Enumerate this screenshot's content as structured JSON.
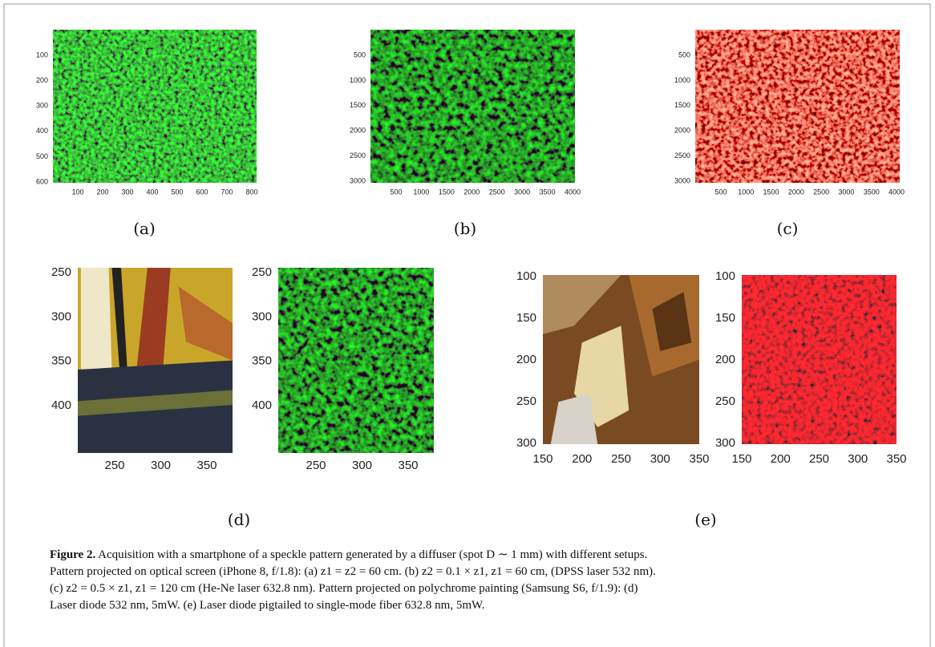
{
  "panels": [
    {
      "label": "(a)",
      "images": [
        {
          "xticks": [
            100,
            200,
            300,
            400,
            500,
            600,
            700,
            800
          ],
          "yticks": [
            100,
            200,
            300,
            400,
            500,
            600
          ]
        }
      ]
    },
    {
      "label": "(b)",
      "images": [
        {
          "xticks": [
            500,
            1000,
            1500,
            2000,
            2500,
            3000,
            3500,
            4000
          ],
          "yticks": [
            500,
            1000,
            1500,
            2000,
            2500,
            3000
          ]
        }
      ]
    },
    {
      "label": "(c)",
      "images": [
        {
          "xticks": [
            500,
            1000,
            1500,
            2000,
            2500,
            3000,
            3500,
            4000
          ],
          "yticks": [
            500,
            1000,
            1500,
            2000,
            2500,
            3000
          ]
        }
      ]
    },
    {
      "label": "(d)",
      "images": [
        {
          "xticks": [
            250,
            300,
            350
          ],
          "yticks": [
            250,
            300,
            350,
            400
          ]
        },
        {
          "xticks": [
            250,
            300,
            350
          ],
          "yticks": [
            250,
            300,
            350,
            400
          ]
        }
      ]
    },
    {
      "label": "(e)",
      "images": [
        {
          "xticks": [
            150,
            200,
            250,
            300,
            350
          ],
          "yticks": [
            100,
            150,
            200,
            250,
            300
          ]
        },
        {
          "xticks": [
            150,
            200,
            250,
            300,
            350
          ],
          "yticks": [
            100,
            150,
            200,
            250,
            300
          ]
        }
      ]
    }
  ],
  "caption": {
    "label": "Figure 2.",
    "lines": [
      " Acquisition with a smartphone of a speckle pattern generated by a diffuser (spot D ∼ 1 mm) with different setups.",
      "Pattern projected on optical screen (iPhone 8, f/1.8): (a) z1 = z2 = 60  cm. (b) z2 = 0.1 × z1, z1 = 60  cm, (DPSS laser 532 nm).",
      "(c) z2 = 0.5 × z1, z1 = 120  cm (He-Ne laser 632.8 nm). Pattern projected on polychrome painting (Samsung S6, f/1.9): (d)",
      "Laser diode 532 nm, 5mW. (e) Laser diode pigtailed to single-mode fiber 632.8 nm, 5mW."
    ]
  }
}
